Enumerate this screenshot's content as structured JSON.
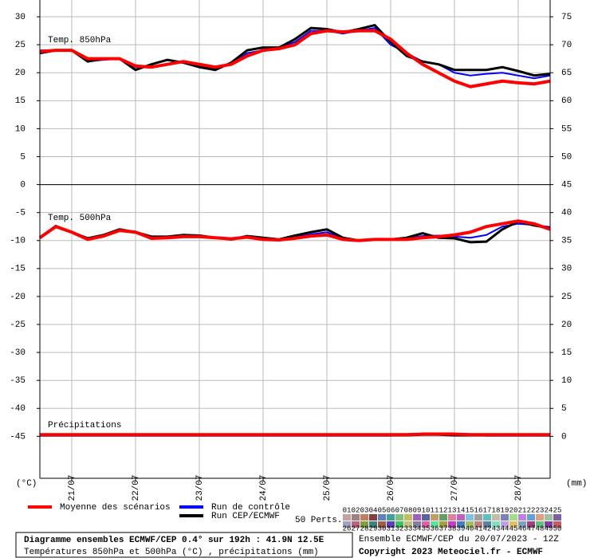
{
  "chart_data": {
    "type": "line",
    "panel_labels": [
      "Temp. 850hPa",
      "Temp. 500hPa",
      "Précipitations"
    ],
    "y_unit_label": "(°C)",
    "y2_unit_label": "(mm)",
    "x": [
      0,
      6,
      12,
      18,
      24,
      30,
      36,
      42,
      48,
      54,
      60,
      66,
      72,
      78,
      84,
      90,
      96,
      102,
      108,
      114,
      120,
      126,
      132,
      138,
      144,
      150,
      156,
      162,
      168,
      174,
      180,
      186,
      192
    ],
    "xlim": [
      0,
      192
    ],
    "xticks": [
      {
        "value": 12,
        "label": "21/07"
      },
      {
        "value": 36,
        "label": "22/07"
      },
      {
        "value": 60,
        "label": "23/07"
      },
      {
        "value": 84,
        "label": "24/07"
      },
      {
        "value": 108,
        "label": "25/07"
      },
      {
        "value": 132,
        "label": "26/07"
      },
      {
        "value": 156,
        "label": "27/07"
      },
      {
        "value": 180,
        "label": "28/07"
      }
    ],
    "ylim": [
      -52.5,
      33
    ],
    "yticks": [
      30,
      25,
      20,
      15,
      10,
      5,
      0,
      -5,
      -10,
      -15,
      -20,
      -25,
      -30,
      -35,
      -40,
      -45
    ],
    "y2lim": [
      -7.5,
      78
    ],
    "y2ticks": [
      75,
      70,
      65,
      60,
      55,
      50,
      45,
      40,
      35,
      30,
      25,
      20,
      15,
      10,
      5,
      0
    ],
    "grid": true,
    "series": [
      {
        "name": "Run de contrôle",
        "color": "#0000ff",
        "width": 2,
        "t850": [
          24,
          24,
          24,
          22,
          22.3,
          22.5,
          21,
          21,
          21.5,
          22,
          21.2,
          20.8,
          21.5,
          23.5,
          24,
          24.5,
          25.5,
          27.5,
          27.5,
          27,
          27.5,
          28,
          25,
          23.5,
          22,
          21.5,
          20,
          19.5,
          19.8,
          20,
          19.5,
          19,
          19.5
        ],
        "t500": [
          -9.5,
          -7.5,
          -8.5,
          -9.7,
          -9.2,
          -8.3,
          -8.6,
          -9.5,
          -9.5,
          -9.2,
          -9.2,
          -9.5,
          -9.7,
          -9.3,
          -9.6,
          -9.8,
          -9.4,
          -8.9,
          -8.5,
          -9.7,
          -10,
          -9.8,
          -9.8,
          -9.6,
          -9.2,
          -9.1,
          -9.3,
          -9.5,
          -9,
          -7.5,
          -7,
          -7.2,
          -7.6
        ],
        "precip": [
          0.1,
          0.1,
          0.1,
          0.1,
          0.1,
          0.1,
          0.1,
          0.1,
          0.1,
          0.1,
          0.1,
          0.1,
          0.1,
          0.1,
          0.1,
          0.1,
          0.1,
          0.1,
          0.1,
          0.1,
          0.1,
          0.1,
          0.1,
          0.2,
          0.3,
          0.4,
          0.3,
          0.2,
          0.1,
          0.1,
          0.1,
          0.1,
          0.1
        ]
      },
      {
        "name": "Run CEP/ECMWF",
        "color": "#000000",
        "width": 3,
        "t850": [
          23.5,
          24,
          24,
          22,
          22.5,
          22.5,
          20.5,
          21.5,
          22.3,
          21.8,
          21,
          20.5,
          21.8,
          24,
          24.5,
          24.5,
          26,
          28,
          27.8,
          27.2,
          27.8,
          28.5,
          25.5,
          23,
          22,
          21.5,
          20.5,
          20.5,
          20.5,
          21,
          20.3,
          19.5,
          19.8
        ],
        "t500": [
          -9.5,
          -7.4,
          -8.5,
          -9.6,
          -9,
          -8,
          -8.5,
          -9.3,
          -9.3,
          -9,
          -9.1,
          -9.5,
          -9.8,
          -9.2,
          -9.5,
          -9.8,
          -9.1,
          -8.5,
          -8,
          -9.5,
          -10,
          -9.8,
          -9.8,
          -9.5,
          -8.7,
          -9.5,
          -9.6,
          -10.3,
          -10.2,
          -8,
          -6.6,
          -7.3,
          -7.8
        ],
        "precip": [
          0.2,
          0.2,
          0.2,
          0.2,
          0.2,
          0.2,
          0.2,
          0.2,
          0.2,
          0.2,
          0.2,
          0.2,
          0.2,
          0.2,
          0.2,
          0.2,
          0.2,
          0.2,
          0.2,
          0.2,
          0.2,
          0.2,
          0.2,
          0.2,
          0.3,
          0.3,
          0.2,
          0.2,
          0.2,
          0.2,
          0.2,
          0.2,
          0.2
        ]
      },
      {
        "name": "Moyenne des scénarios",
        "color": "#ff0000",
        "width": 4,
        "t850": [
          23.8,
          24,
          24,
          22.5,
          22.5,
          22.5,
          21.2,
          21,
          21.5,
          22,
          21.5,
          21,
          21.5,
          23,
          24,
          24.3,
          25,
          27,
          27.5,
          27.3,
          27.5,
          27.5,
          26,
          23.5,
          21.5,
          20,
          18.5,
          17.5,
          18,
          18.5,
          18.2,
          18,
          18.5
        ],
        "t500": [
          -9.5,
          -7.5,
          -8.5,
          -9.8,
          -9.2,
          -8.2,
          -8.5,
          -9.6,
          -9.5,
          -9.3,
          -9.3,
          -9.5,
          -9.7,
          -9.4,
          -9.8,
          -9.9,
          -9.6,
          -9.2,
          -9,
          -9.8,
          -10,
          -9.8,
          -9.8,
          -9.8,
          -9.5,
          -9.3,
          -9,
          -8.5,
          -7.5,
          -7,
          -6.5,
          -7,
          -8
        ],
        "precip": [
          0.3,
          0.3,
          0.3,
          0.3,
          0.3,
          0.3,
          0.3,
          0.3,
          0.3,
          0.3,
          0.3,
          0.3,
          0.3,
          0.3,
          0.3,
          0.3,
          0.3,
          0.3,
          0.3,
          0.3,
          0.3,
          0.3,
          0.3,
          0.3,
          0.4,
          0.4,
          0.4,
          0.3,
          0.3,
          0.3,
          0.3,
          0.3,
          0.3
        ]
      }
    ],
    "legend_order": [
      2,
      0,
      1
    ],
    "perturbations_title": "50 Perts.",
    "perturbation_labels": [
      "01",
      "02",
      "03",
      "04",
      "05",
      "06",
      "07",
      "08",
      "09",
      "10",
      "11",
      "12",
      "13",
      "14",
      "15",
      "16",
      "17",
      "18",
      "19",
      "20",
      "21",
      "22",
      "23",
      "24",
      "25",
      "26",
      "27",
      "28",
      "29",
      "30",
      "31",
      "32",
      "33",
      "34",
      "35",
      "36",
      "37",
      "38",
      "39",
      "40",
      "41",
      "42",
      "43",
      "44",
      "45",
      "46",
      "47",
      "48",
      "49",
      "50"
    ],
    "perturbation_colors": [
      "#c8a0a0",
      "#a08080",
      "#c08060",
      "#804040",
      "#6080c0",
      "#40a0a0",
      "#80c080",
      "#c0c060",
      "#a060c0",
      "#6060a0",
      "#c0a060",
      "#60a060",
      "#e080a0",
      "#c060c0",
      "#80c0e0",
      "#a0a0a0",
      "#60c0c0",
      "#c0c0a0",
      "#8080c0",
      "#a0e080",
      "#c080e0",
      "#60a0e0",
      "#e0a080",
      "#a0c0a0",
      "#8060a0",
      "#a0a0c0",
      "#c06080",
      "#80a040",
      "#408080",
      "#a06040",
      "#6040c0",
      "#40c060",
      "#c0c080",
      "#8080a0",
      "#e060a0",
      "#60e0a0",
      "#a0a040",
      "#c040c0",
      "#4080c0",
      "#a0c060",
      "#c08080",
      "#6080a0",
      "#80e0c0",
      "#c0a0e0",
      "#e0c060",
      "#80a0c0",
      "#a04080",
      "#60c080",
      "#8040a0",
      "#c06060"
    ]
  },
  "footer": {
    "run_info": "Ensemble ECMWF/CEP du 20/07/2023 - 12Z",
    "copyright": "Copyright 2023 Meteociel.fr - ECMWF",
    "box_title": "Diagramme ensembles ECMWF/CEP 0.4° sur 192h : 41.9N 12.5E",
    "box_subtitle": "Températures 850hPa et 500hPa (°C) , précipitations (mm)"
  }
}
